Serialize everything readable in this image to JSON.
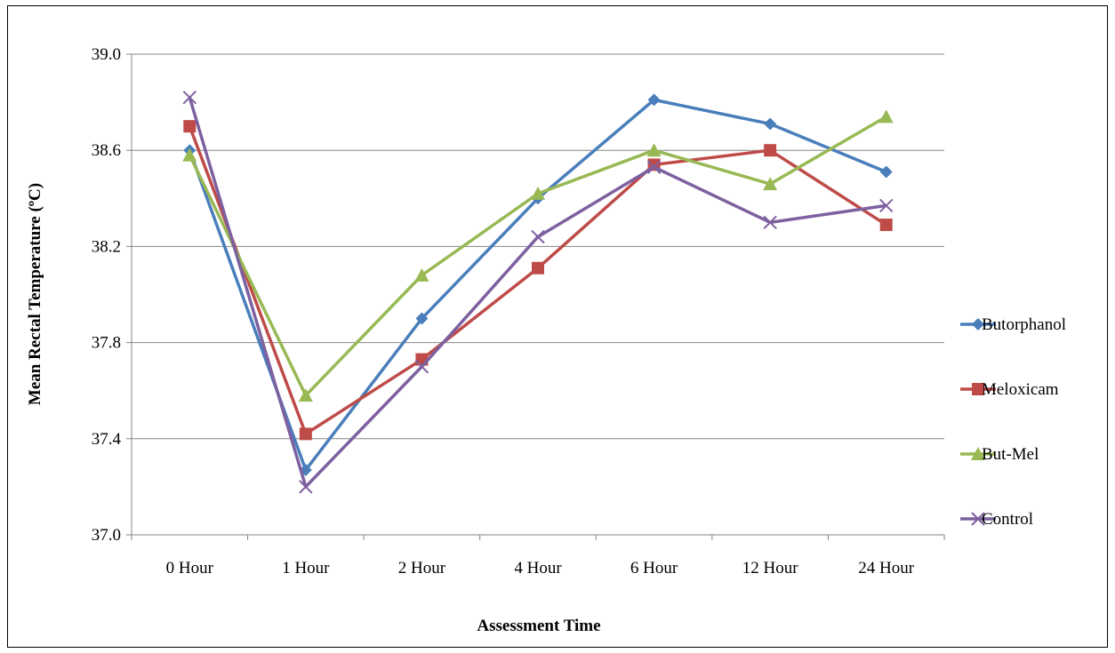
{
  "chart_data": {
    "type": "line",
    "xlabel": "Assessment Time",
    "ylabel": "Mean Rectal Temperature (ºC)",
    "categories": [
      "0 Hour",
      "1 Hour",
      "2 Hour",
      "4 Hour",
      "6 Hour",
      "12 Hour",
      "24 Hour"
    ],
    "ylim": [
      37.0,
      39.0
    ],
    "yticks": [
      37.0,
      37.4,
      37.8,
      38.2,
      38.6,
      39.0
    ],
    "ytick_labels": [
      "37.0",
      "37.4",
      "37.8",
      "38.2",
      "38.6",
      "39.0"
    ],
    "grid": true,
    "legend_position": "right",
    "series": [
      {
        "name": "Butorphanol",
        "color": "#4a7ebb",
        "marker": "diamond",
        "values": [
          38.6,
          37.27,
          37.9,
          38.4,
          38.81,
          38.71,
          38.51
        ]
      },
      {
        "name": "Meloxicam",
        "color": "#be4b48",
        "marker": "square",
        "values": [
          38.7,
          37.42,
          37.73,
          38.11,
          38.54,
          38.6,
          38.29
        ]
      },
      {
        "name": "But-Mel",
        "color": "#98b954",
        "marker": "triangle",
        "values": [
          38.58,
          37.58,
          38.08,
          38.42,
          38.6,
          38.46,
          38.74
        ]
      },
      {
        "name": "Control",
        "color": "#7d60a0",
        "marker": "x",
        "values": [
          38.82,
          37.2,
          37.7,
          38.24,
          38.53,
          38.3,
          38.37
        ]
      }
    ]
  }
}
